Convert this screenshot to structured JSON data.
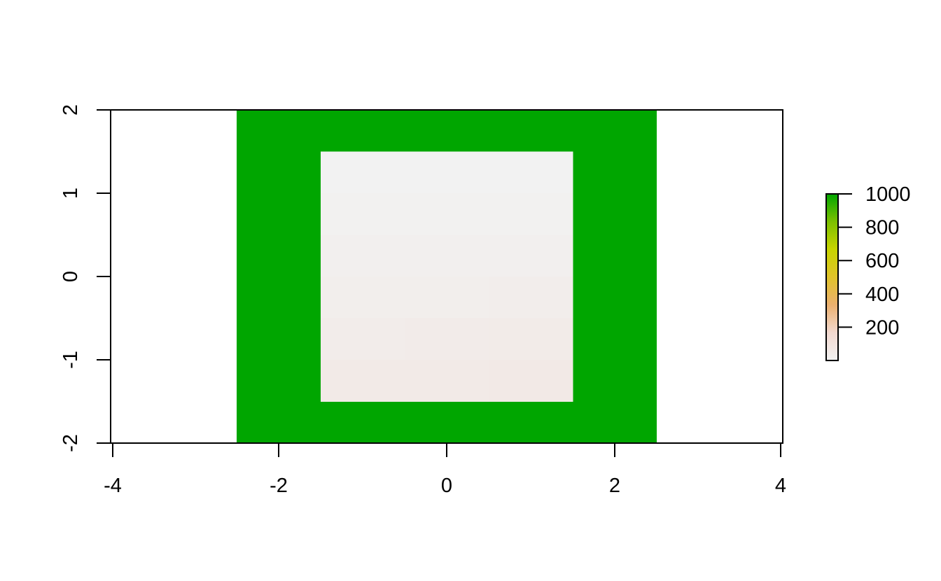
{
  "chart_data": {
    "type": "heatmap",
    "title": "",
    "xlabel": "",
    "ylabel": "",
    "xlim": [
      -4,
      4
    ],
    "ylim": [
      -2,
      2
    ],
    "x_ticks": [
      "-4",
      "-2",
      "0",
      "2",
      "4"
    ],
    "y_ticks": [
      "-2",
      "-1",
      "0",
      "1",
      "2"
    ],
    "cell_size": 0.5,
    "cells": [
      {
        "x": [
          -2.5,
          2.5
        ],
        "y": [
          -2,
          2
        ],
        "value": 1000
      }
    ],
    "inner_region": {
      "x": [
        -1.5,
        1.5
      ],
      "y": [
        -1.5,
        1.5
      ],
      "cols": 3,
      "rows": 6,
      "values": [
        [
          0,
          0,
          0
        ],
        [
          8,
          8,
          10
        ],
        [
          18,
          20,
          22
        ],
        [
          28,
          30,
          34
        ],
        [
          40,
          44,
          48
        ],
        [
          52,
          56,
          60
        ]
      ]
    },
    "legend": {
      "position": "right",
      "range": [
        0,
        1000
      ],
      "ticks": [
        "200",
        "400",
        "600",
        "800",
        "1000"
      ],
      "colors": [
        "#f2f2f2",
        "#f2d9d0",
        "#ebb06f",
        "#e0c32a",
        "#c8d400",
        "#7cc000",
        "#00a600"
      ]
    }
  }
}
